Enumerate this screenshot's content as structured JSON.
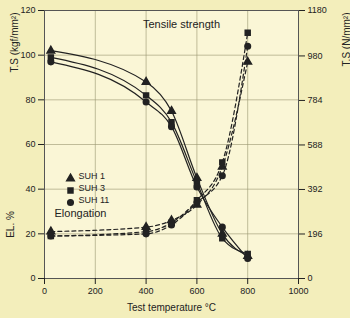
{
  "chart_data": {
    "type": "line",
    "x_label": "Test temperature °C",
    "y_label": "T.S (kgf/mm²)",
    "y_label_lower": "EL. %",
    "y2_label": "T.S (N/mm²)",
    "annotations": [
      "Tensile strength",
      "Elongation"
    ],
    "x": [
      25,
      400,
      500,
      600,
      700,
      800
    ],
    "xlim": [
      0,
      1000
    ],
    "xticks": [
      0,
      200,
      400,
      600,
      800,
      1000
    ],
    "ylim": [
      0,
      120
    ],
    "yticks": [
      0,
      20,
      40,
      60,
      80,
      100,
      120
    ],
    "y2lim": [
      0,
      1180
    ],
    "y2ticks": [
      0,
      196,
      392,
      588,
      784,
      980,
      1180
    ],
    "grid": true,
    "legend": "lower left",
    "series": [
      {
        "name": "SUH 1",
        "color": "#222222",
        "marker": "triangle",
        "line_style": "solid",
        "values": [
          102,
          88,
          75,
          45,
          20,
          10
        ]
      },
      {
        "name": "SUH 3",
        "color": "#222222",
        "marker": "square",
        "line_style": "solid",
        "values": [
          99,
          82,
          70,
          43,
          18,
          11
        ]
      },
      {
        "name": "SUH 11",
        "color": "#222222",
        "marker": "circle",
        "line_style": "solid",
        "values": [
          97,
          79,
          68,
          41,
          23,
          9
        ]
      },
      {
        "name": "SUH 1",
        "color": "#222222",
        "marker": "triangle",
        "line_style": "dashed",
        "values": [
          21,
          23,
          26,
          33,
          50,
          97
        ]
      },
      {
        "name": "SUH 3",
        "color": "#222222",
        "marker": "square",
        "line_style": "dashed",
        "values": [
          19,
          21,
          25,
          35,
          52,
          110
        ]
      },
      {
        "name": "SUH 11",
        "color": "#222222",
        "marker": "circle",
        "line_style": "dashed",
        "values": [
          19,
          20,
          24,
          34,
          46,
          104
        ]
      }
    ]
  }
}
